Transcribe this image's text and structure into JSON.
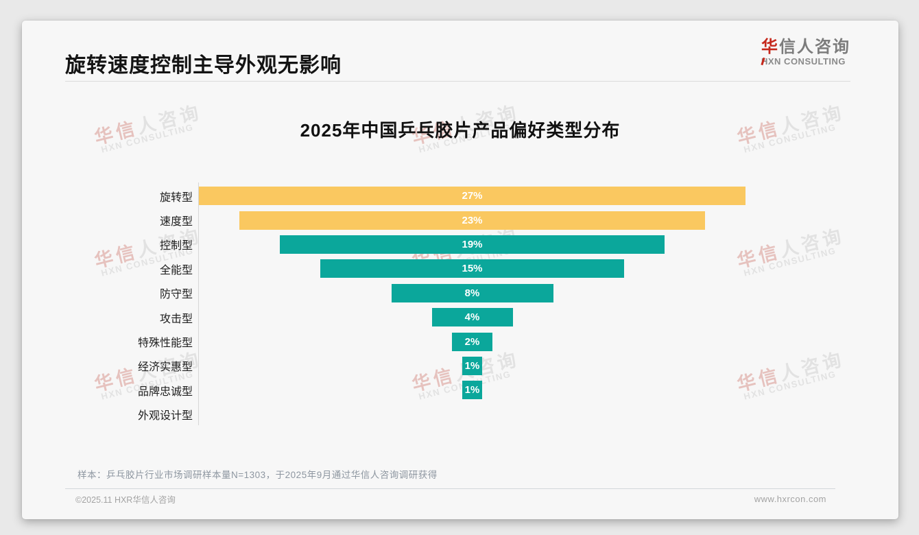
{
  "page_title": "旋转速度控制主导外观无影响",
  "logo": {
    "brand_accent": "华",
    "brand_rest": "信人咨询",
    "subtitle": "HXN CONSULTING"
  },
  "watermark": {
    "line1_accent": "华信",
    "line1_rest": "人咨询",
    "line2": "HXN CONSULTING"
  },
  "chart_data": {
    "type": "bar",
    "variant": "horizontal-centered-funnel",
    "title": "2025年中国乒乓胶片产品偏好类型分布",
    "categories": [
      "旋转型",
      "速度型",
      "控制型",
      "全能型",
      "防守型",
      "攻击型",
      "特殊性能型",
      "经济实惠型",
      "品牌忠诚型",
      "外观设计型"
    ],
    "values": [
      27,
      23,
      19,
      15,
      8,
      4,
      2,
      1,
      1,
      0
    ],
    "value_labels": [
      "27%",
      "23%",
      "19%",
      "15%",
      "8%",
      "4%",
      "2%",
      "1%",
      "1%",
      ""
    ],
    "bar_colors": [
      "#FAC860",
      "#FAC860",
      "#0BA79B",
      "#0BA79B",
      "#0BA79B",
      "#0BA79B",
      "#0BA79B",
      "#0BA79B",
      "#0BA79B",
      "#0BA79B"
    ],
    "unit": "%",
    "xlim": [
      0,
      27
    ],
    "grid": false,
    "legend": false,
    "value_label_color": "#ffffff"
  },
  "footnote": "样本：乒乓胶片行业市场调研样本量N=1303，于2025年9月通过华信人咨询调研获得",
  "footer": {
    "copyright": "©2025.11 HXR华信人咨询",
    "website": "www.hxrcon.com"
  },
  "colors": {
    "accent_red": "#C5281C",
    "bar_yellow": "#FAC860",
    "bar_teal": "#0BA79B",
    "card_bg": "#F7F7F7",
    "page_bg": "#E9E9E9"
  }
}
